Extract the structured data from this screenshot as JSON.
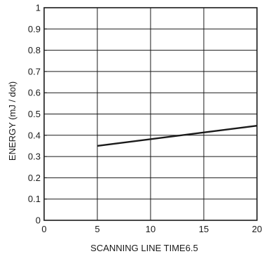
{
  "chart_data": {
    "type": "line",
    "title": "",
    "xlabel": "SCANNING  LINE  TIME6.5",
    "ylabel": "ENERGY (mJ / dot)",
    "xlim": [
      0,
      20
    ],
    "ylim": [
      0,
      1
    ],
    "xticks": [
      0,
      5,
      10,
      15,
      20
    ],
    "xtick_labels": [
      "0",
      "5",
      "10",
      "15",
      "20"
    ],
    "yticks": [
      0,
      0.1,
      0.2,
      0.3,
      0.4,
      0.5,
      0.6,
      0.7,
      0.8,
      0.9,
      1
    ],
    "ytick_labels": [
      "0",
      "0.1",
      "0.2",
      "0.3",
      "0.4",
      "0.5",
      "0.6",
      "0.7",
      "0.8",
      "0.9",
      "1"
    ],
    "grid": true,
    "legend": "none",
    "series": [
      {
        "x": [
          5,
          20
        ],
        "y": [
          0.35,
          0.445
        ],
        "color": "#1a1a1a"
      }
    ]
  }
}
